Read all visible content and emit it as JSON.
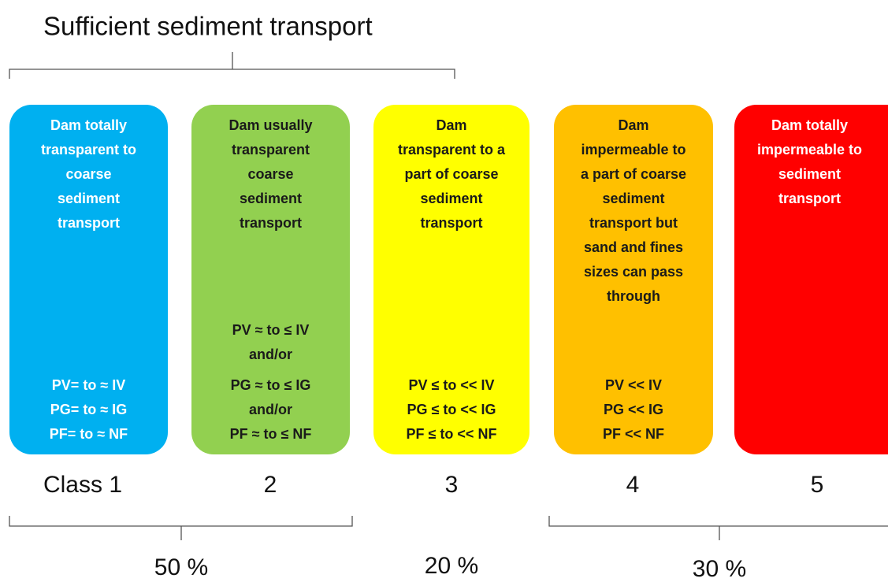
{
  "title": "Sufficient sediment transport",
  "classes": [
    {
      "label": "Class 1",
      "description": [
        "Dam totally",
        "transparent to",
        "coarse",
        "sediment",
        "transport"
      ],
      "criteria": [
        "PV= to ≈ IV",
        "PG= to ≈ IG",
        "PF= to ≈ NF"
      ]
    },
    {
      "label": "2",
      "description": [
        "Dam usually",
        "transparent",
        "coarse",
        "sediment",
        "transport"
      ],
      "criteria": [
        "PV ≈ to ≤ IV",
        "and/or",
        "PG ≈ to ≤ IG",
        "and/or",
        "PF ≈ to ≤ NF"
      ]
    },
    {
      "label": "3",
      "description": [
        "Dam",
        "transparent to a",
        "part of coarse",
        "sediment",
        "transport"
      ],
      "criteria": [
        "PV ≤ to << IV",
        "PG ≤ to << IG",
        "PF ≤ to << NF"
      ]
    },
    {
      "label": "4",
      "description": [
        "Dam",
        "impermeable to",
        "a part of coarse",
        "sediment",
        "transport but",
        "sand and fines",
        "sizes can pass",
        "through"
      ],
      "criteria": [
        "PV << IV",
        "PG << IG",
        "PF << NF"
      ]
    },
    {
      "label": "5",
      "description": [
        "Dam totally",
        "impermeable to",
        "sediment",
        "transport"
      ],
      "criteria": []
    }
  ],
  "groups": [
    "50 %",
    "20 %",
    "30 %"
  ]
}
